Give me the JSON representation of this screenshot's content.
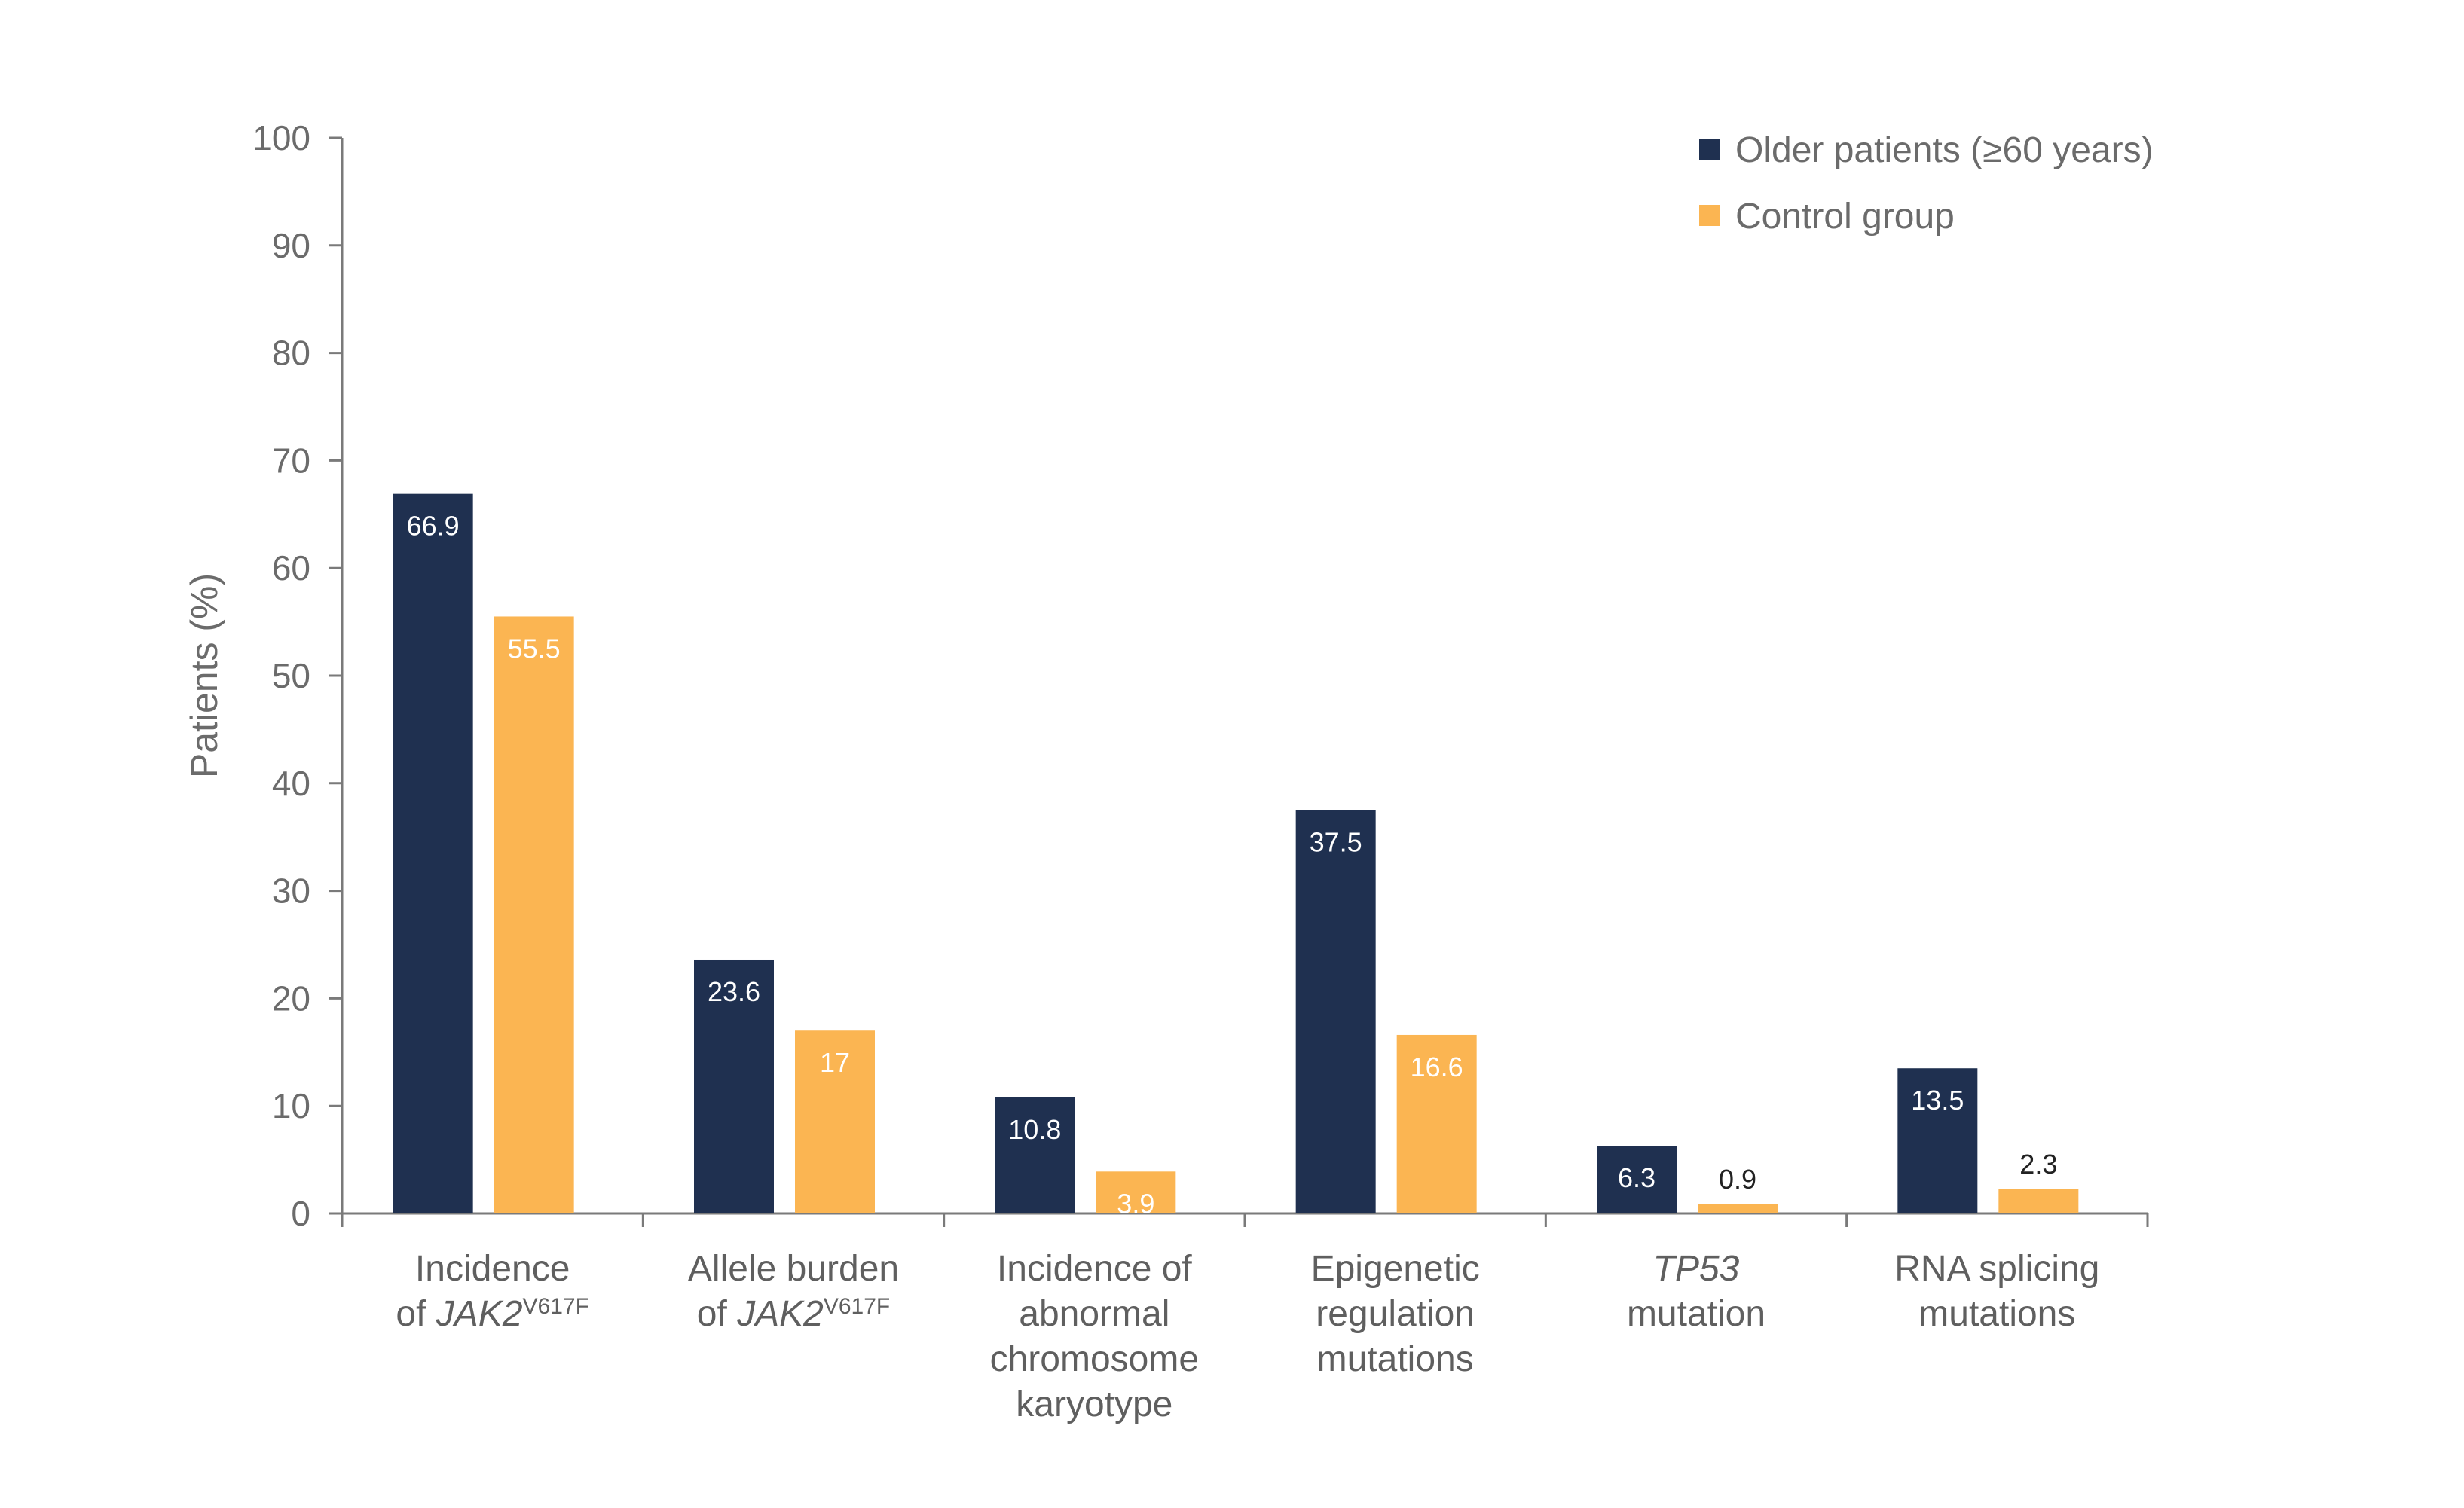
{
  "chart_data": {
    "type": "bar",
    "title": "",
    "xlabel": "",
    "ylabel": "Patients (%)",
    "ylim": [
      0,
      100
    ],
    "yticks": [
      0,
      10,
      20,
      30,
      40,
      50,
      60,
      70,
      80,
      90,
      100
    ],
    "grid": false,
    "legend_position": "top-right",
    "categories": [
      [
        "Incidence",
        "of JAK2V617F"
      ],
      [
        "Allele burden",
        "of JAK2V617F"
      ],
      [
        "Incidence of",
        "abnormal",
        "chromosome",
        "karyotype"
      ],
      [
        "Epigenetic",
        "regulation",
        "mutations"
      ],
      [
        "TP53",
        "mutation"
      ],
      [
        "RNA splicing",
        "mutations"
      ]
    ],
    "series": [
      {
        "name": "Older patients (≥60 years)",
        "color": "#1f3050",
        "values": [
          66.9,
          23.6,
          10.8,
          37.5,
          6.3,
          13.5
        ]
      },
      {
        "name": "Control group",
        "color": "#fbb552",
        "values": [
          55.5,
          17,
          3.9,
          16.6,
          0.9,
          2.3
        ]
      }
    ]
  }
}
